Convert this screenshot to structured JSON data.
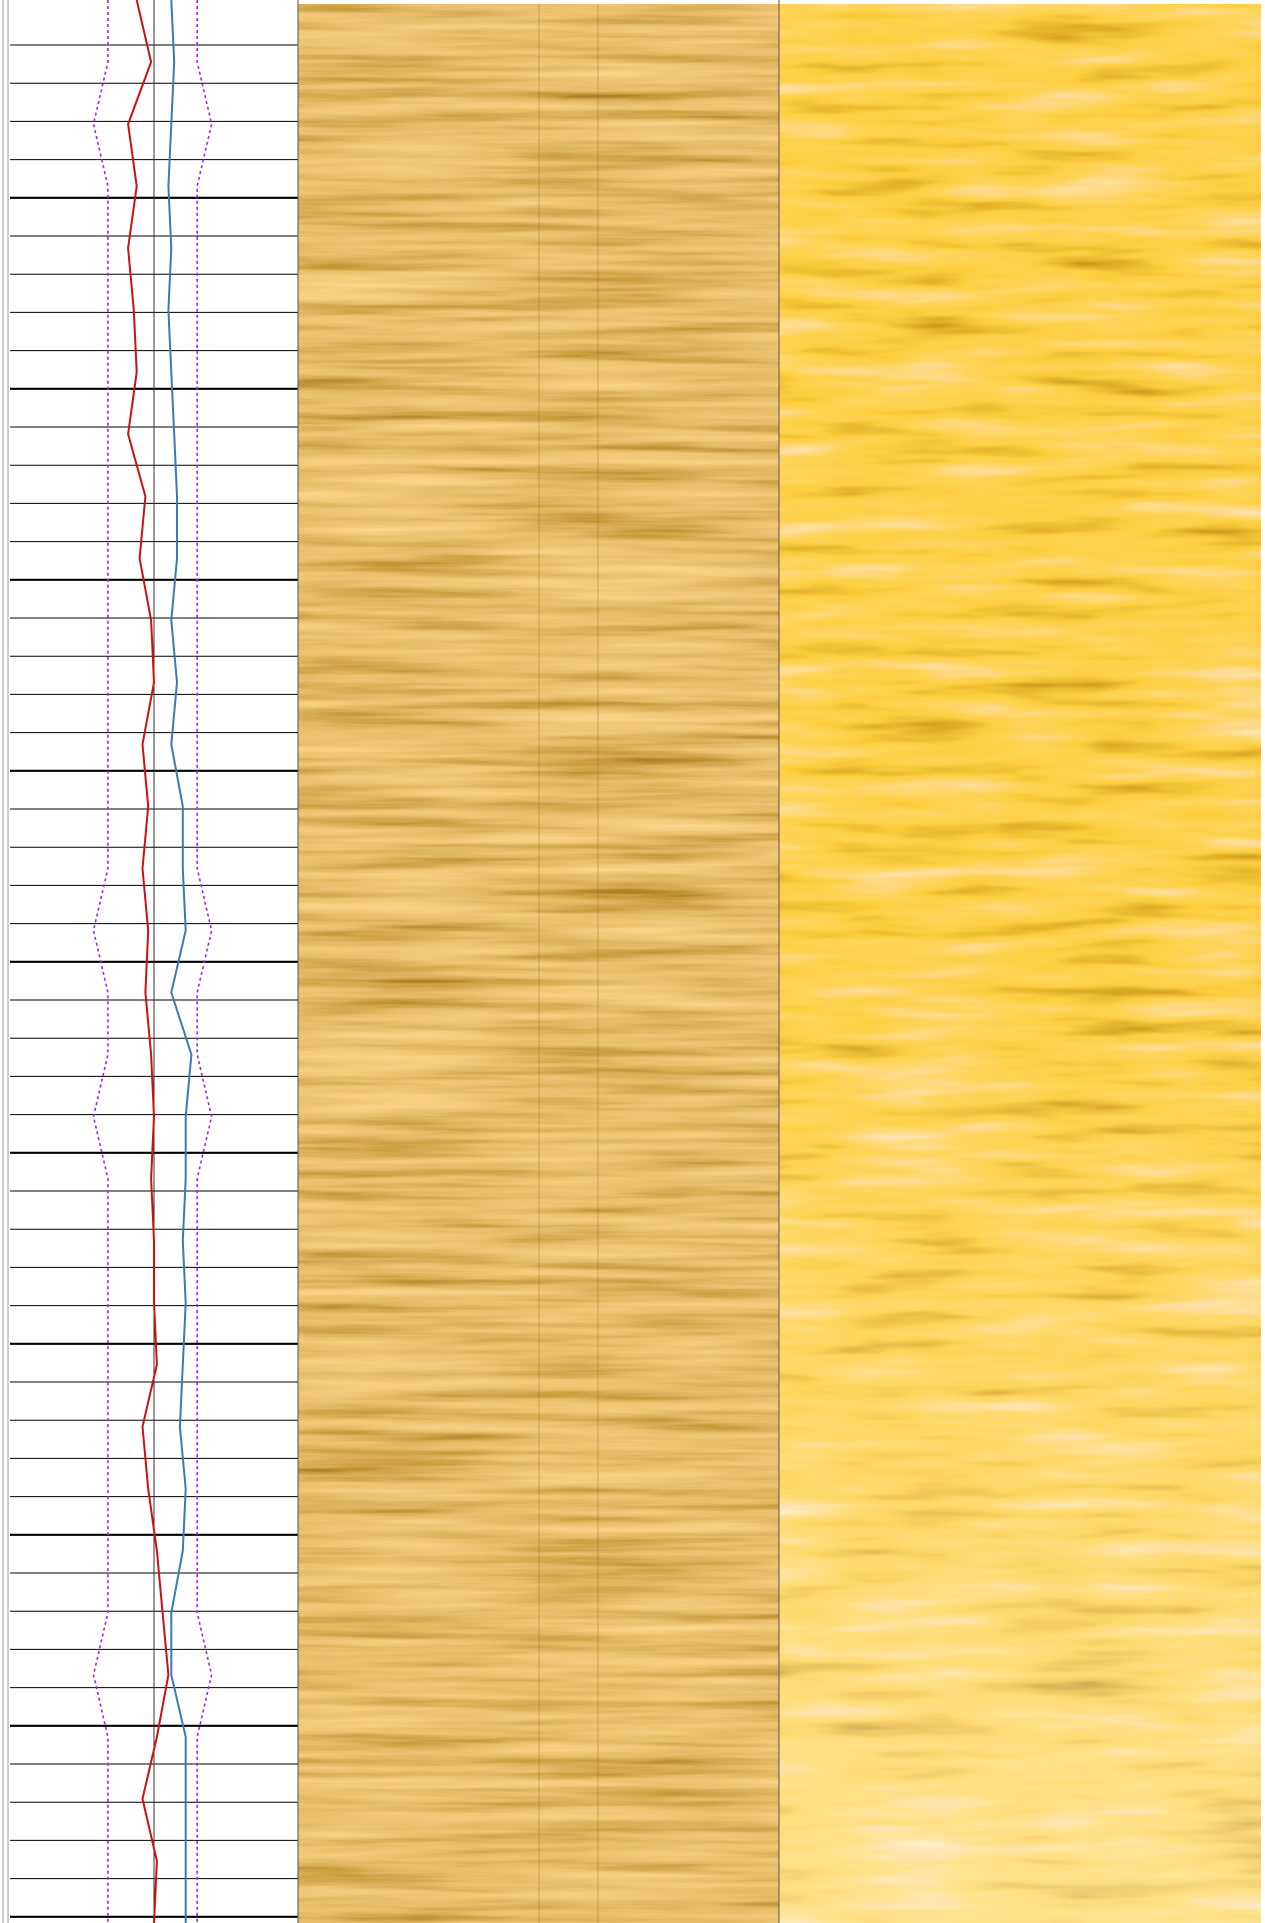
{
  "chart_data": {
    "type": "line",
    "xlim": [
      0,
      100
    ],
    "series": [
      {
        "color": "#cc1111",
        "values": [
          44,
          49,
          41,
          44,
          41,
          43,
          44,
          41,
          47,
          45,
          49,
          50,
          46,
          48,
          46,
          48,
          47,
          49,
          50,
          49,
          50,
          50,
          51,
          46,
          48,
          51,
          53,
          55,
          51,
          46,
          51,
          50
        ]
      },
      {
        "color": "#3a7ab8",
        "values": [
          56,
          57,
          56,
          55,
          56,
          55,
          56,
          57,
          58,
          58,
          56,
          58,
          56,
          60,
          60,
          61,
          56,
          63,
          61,
          61,
          60,
          61,
          60,
          59,
          61,
          60,
          56,
          56,
          61,
          61,
          61,
          61
        ]
      },
      {
        "color": "#9a2be2",
        "dashed": true,
        "values": [
          34,
          34,
          29,
          34,
          34,
          34,
          34,
          34,
          34,
          34,
          34,
          34,
          34,
          34,
          34,
          29,
          34,
          34,
          29,
          34,
          34,
          34,
          34,
          34,
          34,
          34,
          34,
          29,
          34,
          34,
          34,
          34
        ]
      },
      {
        "color": "#9a2be2",
        "dashed": true,
        "values": [
          65,
          65,
          70,
          65,
          65,
          65,
          65,
          65,
          65,
          65,
          65,
          65,
          65,
          65,
          65,
          70,
          65,
          65,
          70,
          65,
          65,
          65,
          65,
          65,
          65,
          65,
          65,
          70,
          65,
          65,
          65,
          65
        ]
      }
    ]
  }
}
